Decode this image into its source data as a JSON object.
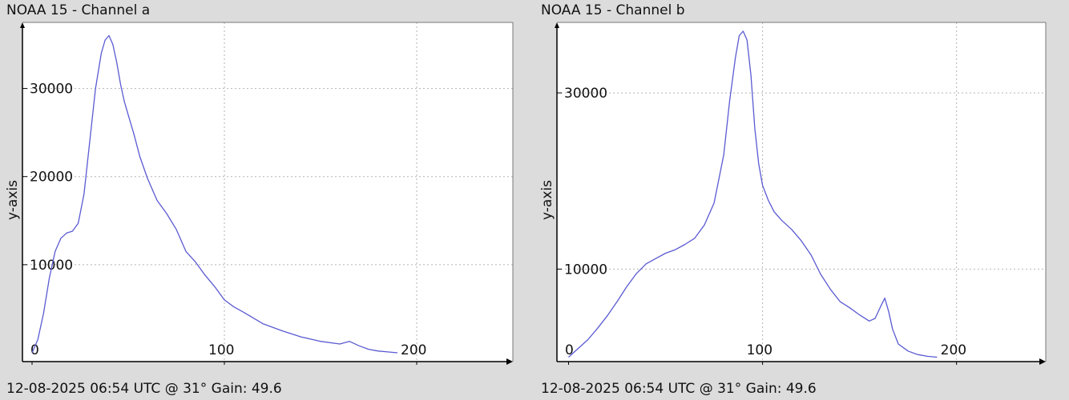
{
  "colors": {
    "background": "#dcdcdc",
    "plot_background": "#ffffff",
    "line": "#5a5ad2",
    "axis": "#000000",
    "grid": "#b4b4b4"
  },
  "panels": [
    {
      "title": "NOAA 15 - Channel a",
      "footer": "12-08-2025 06:54 UTC @ 31° Gain: 49.6"
    },
    {
      "title": "NOAA 15 - Channel b",
      "footer": "12-08-2025 06:54 UTC @ 31° Gain: 49.6"
    }
  ],
  "chart_data": [
    {
      "type": "line",
      "title": "NOAA 15 - Channel a",
      "xlabel": "",
      "ylabel": "y-axis",
      "xlim": [
        -5,
        250
      ],
      "ylim": [
        -1000,
        37500
      ],
      "xticks": [
        0,
        100,
        200
      ],
      "yticks": [
        10000,
        20000,
        30000
      ],
      "xtick_labels": [
        "0",
        "100",
        "200"
      ],
      "ytick_labels": [
        "10000",
        "20000",
        "30000"
      ],
      "grid": true,
      "series": [
        {
          "x": [
            0,
            3,
            6,
            9,
            12,
            15,
            18,
            21,
            24,
            27,
            30,
            33,
            36,
            38,
            40,
            42,
            44,
            46,
            48,
            50,
            53,
            56,
            60,
            65,
            70,
            75,
            80,
            85,
            90,
            95,
            100,
            105,
            110,
            120,
            130,
            140,
            150,
            160,
            165,
            170,
            175,
            180,
            185,
            190
          ],
          "y": [
            0,
            1500,
            4500,
            8500,
            11500,
            13000,
            13600,
            13800,
            14700,
            18000,
            24000,
            30000,
            34000,
            35500,
            36000,
            35000,
            33000,
            30500,
            28500,
            27000,
            24800,
            22300,
            19800,
            17300,
            15800,
            14000,
            11500,
            10300,
            8800,
            7500,
            6000,
            5200,
            4600,
            3300,
            2500,
            1800,
            1300,
            1000,
            1300,
            800,
            400,
            200,
            100,
            0
          ]
        }
      ]
    },
    {
      "type": "line",
      "title": "NOAA 15 - Channel b",
      "xlabel": "",
      "ylabel": "y-axis",
      "xlim": [
        -6,
        246
      ],
      "ylim": [
        -500,
        38000
      ],
      "xticks": [
        0,
        100,
        200
      ],
      "yticks": [
        10000,
        30000
      ],
      "xtick_labels": [
        "0",
        "100",
        "200"
      ],
      "ytick_labels": [
        "10000",
        "30000"
      ],
      "grid": true,
      "series": [
        {
          "x": [
            0,
            5,
            10,
            15,
            20,
            25,
            30,
            35,
            40,
            45,
            50,
            55,
            60,
            65,
            70,
            75,
            80,
            83,
            86,
            88,
            90,
            92,
            94,
            96,
            98,
            100,
            103,
            106,
            110,
            115,
            120,
            125,
            130,
            135,
            140,
            145,
            150,
            155,
            158,
            161,
            163,
            165,
            167,
            170,
            175,
            180,
            185,
            190
          ],
          "y": [
            0,
            1000,
            2000,
            3300,
            4700,
            6300,
            8000,
            9500,
            10600,
            11200,
            11800,
            12200,
            12800,
            13500,
            15000,
            17500,
            23000,
            29000,
            34000,
            36500,
            37000,
            36000,
            32000,
            26000,
            22000,
            19500,
            17800,
            16500,
            15500,
            14500,
            13200,
            11600,
            9400,
            7700,
            6300,
            5600,
            4800,
            4100,
            4400,
            5800,
            6700,
            5200,
            3200,
            1500,
            700,
            300,
            100,
            0
          ]
        }
      ]
    }
  ]
}
